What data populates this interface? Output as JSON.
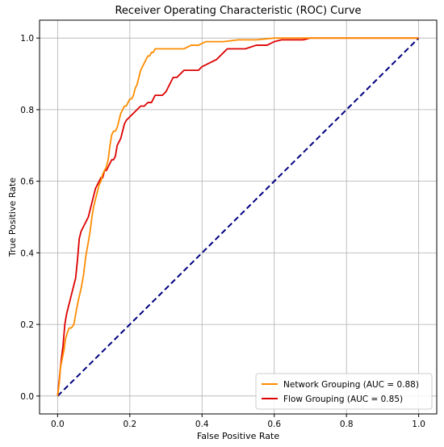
{
  "chart_data": {
    "type": "line",
    "title": "Receiver Operating Characteristic (ROC) Curve",
    "xlabel": "False Positive Rate",
    "ylabel": "True Positive Rate",
    "xlim": [
      -0.05,
      1.05
    ],
    "ylim": [
      -0.05,
      1.05
    ],
    "x_ticks": [
      "0.0",
      "0.2",
      "0.4",
      "0.6",
      "0.8",
      "1.0"
    ],
    "y_ticks": [
      "0.0",
      "0.2",
      "0.4",
      "0.6",
      "0.8",
      "1.0"
    ],
    "grid": true,
    "legend_position": "lower-right",
    "series": [
      {
        "name": "Network Grouping (AUC = 0.88)",
        "color": "#ff8c00",
        "style": "solid",
        "x": [
          0.0,
          0.005,
          0.008,
          0.012,
          0.018,
          0.022,
          0.028,
          0.032,
          0.038,
          0.045,
          0.052,
          0.058,
          0.065,
          0.072,
          0.078,
          0.085,
          0.09,
          0.095,
          0.1,
          0.105,
          0.11,
          0.115,
          0.12,
          0.125,
          0.13,
          0.135,
          0.14,
          0.145,
          0.15,
          0.155,
          0.16,
          0.165,
          0.17,
          0.175,
          0.18,
          0.185,
          0.19,
          0.195,
          0.2,
          0.205,
          0.21,
          0.215,
          0.22,
          0.225,
          0.23,
          0.235,
          0.24,
          0.245,
          0.25,
          0.255,
          0.26,
          0.265,
          0.27,
          0.28,
          0.29,
          0.3,
          0.31,
          0.33,
          0.35,
          0.37,
          0.38,
          0.39,
          0.41,
          0.43,
          0.44,
          0.46,
          0.5,
          0.55,
          0.6,
          0.63,
          0.65,
          0.67,
          0.68,
          1.0
        ],
        "y": [
          0.0,
          0.04,
          0.08,
          0.1,
          0.13,
          0.16,
          0.18,
          0.19,
          0.19,
          0.2,
          0.24,
          0.27,
          0.3,
          0.34,
          0.39,
          0.43,
          0.46,
          0.5,
          0.53,
          0.55,
          0.57,
          0.59,
          0.6,
          0.62,
          0.63,
          0.64,
          0.66,
          0.7,
          0.73,
          0.74,
          0.74,
          0.75,
          0.77,
          0.79,
          0.8,
          0.81,
          0.81,
          0.82,
          0.83,
          0.83,
          0.84,
          0.86,
          0.87,
          0.89,
          0.91,
          0.92,
          0.93,
          0.94,
          0.95,
          0.95,
          0.96,
          0.96,
          0.97,
          0.97,
          0.97,
          0.97,
          0.97,
          0.97,
          0.97,
          0.98,
          0.98,
          0.98,
          0.99,
          0.99,
          0.99,
          0.99,
          0.995,
          0.995,
          1.0,
          1.0,
          1.0,
          1.0,
          1.0,
          1.0
        ]
      },
      {
        "name": "Flow Grouping (AUC = 0.85)",
        "color": "#dd0000",
        "style": "solid",
        "x": [
          0.0,
          0.005,
          0.01,
          0.015,
          0.02,
          0.025,
          0.03,
          0.035,
          0.04,
          0.045,
          0.05,
          0.055,
          0.06,
          0.065,
          0.07,
          0.075,
          0.08,
          0.085,
          0.09,
          0.095,
          0.1,
          0.105,
          0.11,
          0.115,
          0.12,
          0.125,
          0.13,
          0.135,
          0.14,
          0.145,
          0.15,
          0.155,
          0.16,
          0.165,
          0.17,
          0.175,
          0.18,
          0.185,
          0.19,
          0.2,
          0.21,
          0.22,
          0.23,
          0.24,
          0.25,
          0.26,
          0.27,
          0.28,
          0.29,
          0.3,
          0.31,
          0.32,
          0.33,
          0.34,
          0.35,
          0.36,
          0.37,
          0.38,
          0.39,
          0.4,
          0.42,
          0.44,
          0.45,
          0.46,
          0.47,
          0.48,
          0.5,
          0.52,
          0.55,
          0.57,
          0.58,
          0.6,
          0.62,
          0.64,
          0.66,
          0.68,
          0.7,
          0.72,
          0.75,
          0.78,
          0.8,
          1.0
        ],
        "y": [
          0.0,
          0.05,
          0.1,
          0.14,
          0.2,
          0.23,
          0.25,
          0.27,
          0.29,
          0.31,
          0.33,
          0.38,
          0.44,
          0.46,
          0.47,
          0.48,
          0.49,
          0.5,
          0.52,
          0.54,
          0.56,
          0.58,
          0.59,
          0.6,
          0.61,
          0.61,
          0.63,
          0.63,
          0.64,
          0.65,
          0.66,
          0.66,
          0.67,
          0.7,
          0.71,
          0.72,
          0.74,
          0.76,
          0.77,
          0.78,
          0.79,
          0.8,
          0.81,
          0.81,
          0.82,
          0.82,
          0.84,
          0.84,
          0.84,
          0.85,
          0.87,
          0.89,
          0.89,
          0.9,
          0.91,
          0.91,
          0.91,
          0.91,
          0.91,
          0.92,
          0.93,
          0.94,
          0.95,
          0.96,
          0.97,
          0.97,
          0.97,
          0.97,
          0.98,
          0.98,
          0.98,
          0.99,
          0.995,
          0.995,
          0.995,
          0.995,
          1.0,
          1.0,
          1.0,
          1.0,
          1.0,
          1.0
        ]
      },
      {
        "name": "",
        "color": "#000080",
        "style": "dashed",
        "x": [
          0.0,
          1.0
        ],
        "y": [
          0.0,
          1.0
        ]
      }
    ]
  }
}
